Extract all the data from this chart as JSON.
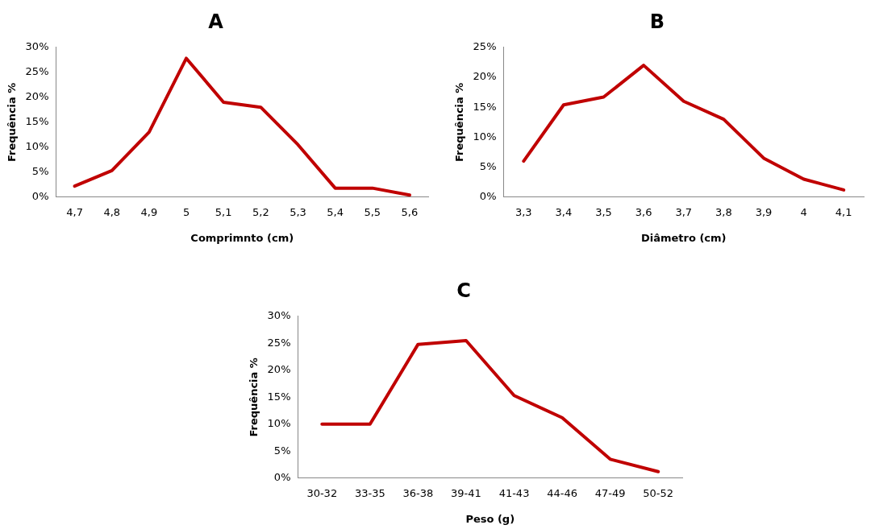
{
  "chart_data": [
    {
      "type": "line",
      "title": "A",
      "xlabel": "Comprimnto (cm)",
      "ylabel": "Frequência %",
      "categories": [
        "4,7",
        "4,8",
        "4,9",
        "5",
        "5,1",
        "5,2",
        "5,3",
        "5,4",
        "5,5",
        "5,6"
      ],
      "series": [
        {
          "color": "#c00000",
          "values": [
            2.2,
            5.3,
            13,
            27.8,
            19,
            18,
            10.5,
            1.8,
            1.8,
            0.4
          ]
        }
      ],
      "ylim": [
        0,
        30
      ],
      "yticks": [
        {
          "value": 0,
          "label": "0%"
        },
        {
          "value": 5,
          "label": "5%"
        },
        {
          "value": 10,
          "label": "10%"
        },
        {
          "value": 15,
          "label": "15%"
        },
        {
          "value": 20,
          "label": "20%"
        },
        {
          "value": 25,
          "label": "25%"
        },
        {
          "value": 30,
          "label": "30%"
        }
      ],
      "grid": false,
      "legend": false,
      "marker": "none"
    },
    {
      "type": "line",
      "title": "B",
      "xlabel": "Diâmetro (cm)",
      "ylabel": "Frequência %",
      "categories": [
        "3,3",
        "3,4",
        "3,5",
        "3,6",
        "3,7",
        "3,8",
        "3,9",
        "4",
        "4,1"
      ],
      "series": [
        {
          "color": "#c00000",
          "values": [
            6,
            15.4,
            16.7,
            22,
            16,
            13,
            6.5,
            3,
            1.2
          ]
        }
      ],
      "ylim": [
        0,
        25
      ],
      "yticks": [
        {
          "value": 0,
          "label": "0%"
        },
        {
          "value": 5,
          "label": "5%"
        },
        {
          "value": 10,
          "label": "10%"
        },
        {
          "value": 15,
          "label": "15%"
        },
        {
          "value": 20,
          "label": "20%"
        },
        {
          "value": 25,
          "label": "25%"
        }
      ],
      "grid": false,
      "legend": false,
      "marker": "none"
    },
    {
      "type": "line",
      "title": "C",
      "xlabel": "Peso (g)",
      "ylabel": "Frequência %",
      "categories": [
        "30-32",
        "33-35",
        "36-38",
        "39-41",
        "41-43",
        "44-46",
        "47-49",
        "50-52"
      ],
      "series": [
        {
          "color": "#c00000",
          "values": [
            10,
            10,
            24.8,
            25.5,
            15.3,
            11.2,
            3.5,
            1.2
          ]
        }
      ],
      "ylim": [
        0,
        30
      ],
      "yticks": [
        {
          "value": 0,
          "label": "0%"
        },
        {
          "value": 5,
          "label": "5%"
        },
        {
          "value": 10,
          "label": "10%"
        },
        {
          "value": 15,
          "label": "15%"
        },
        {
          "value": 20,
          "label": "20%"
        },
        {
          "value": 25,
          "label": "25%"
        },
        {
          "value": 30,
          "label": "30%"
        }
      ],
      "grid": false,
      "legend": false,
      "marker": "none"
    }
  ]
}
